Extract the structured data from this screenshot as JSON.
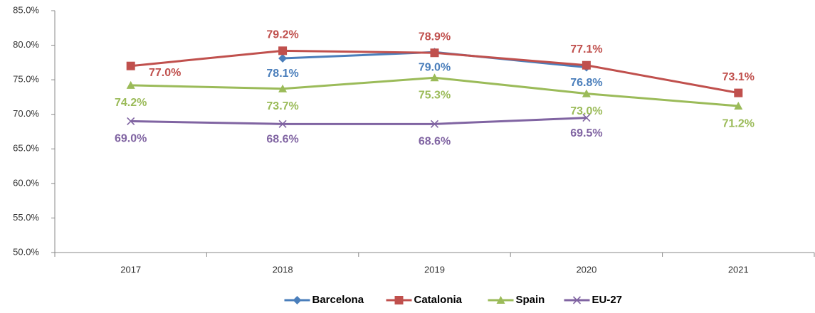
{
  "chart_data": {
    "type": "line",
    "categories": [
      "2017",
      "2018",
      "2019",
      "2020",
      "2021"
    ],
    "series": [
      {
        "name": "Barcelona",
        "color": "#4a7ebb",
        "marker": "diamond",
        "values": [
          null,
          78.1,
          79.0,
          76.8,
          null
        ],
        "value_labels": [
          null,
          "78.1%",
          "79.0%",
          "76.8%",
          null
        ]
      },
      {
        "name": "Catalonia",
        "color": "#c0504d",
        "marker": "square",
        "values": [
          77.0,
          79.2,
          78.9,
          77.1,
          73.1
        ],
        "value_labels": [
          "77.0%",
          "79.2%",
          "78.9%",
          "77.1%",
          "73.1%"
        ]
      },
      {
        "name": "Spain",
        "color": "#9bbb59",
        "marker": "triangle",
        "values": [
          74.2,
          73.7,
          75.3,
          73.0,
          71.2
        ],
        "value_labels": [
          "74.2%",
          "73.7%",
          "75.3%",
          "73.0%",
          "71.2%"
        ]
      },
      {
        "name": "EU-27",
        "color": "#8064a2",
        "marker": "x",
        "values": [
          69.0,
          68.6,
          68.6,
          69.5,
          null
        ],
        "value_labels": [
          "69.0%",
          "68.6%",
          "68.6%",
          "69.5%",
          null
        ]
      }
    ],
    "ylim": [
      50,
      85
    ],
    "yticks": [
      {
        "value": 50,
        "label": "50.0%"
      },
      {
        "value": 55,
        "label": "55.0%"
      },
      {
        "value": 60,
        "label": "60.0%"
      },
      {
        "value": 65,
        "label": "65.0%"
      },
      {
        "value": 70,
        "label": "70.0%"
      },
      {
        "value": 75,
        "label": "75.0%"
      },
      {
        "value": 80,
        "label": "80.0%"
      },
      {
        "value": 85,
        "label": "85.0%"
      }
    ],
    "grid": false,
    "legend": "bottom"
  }
}
